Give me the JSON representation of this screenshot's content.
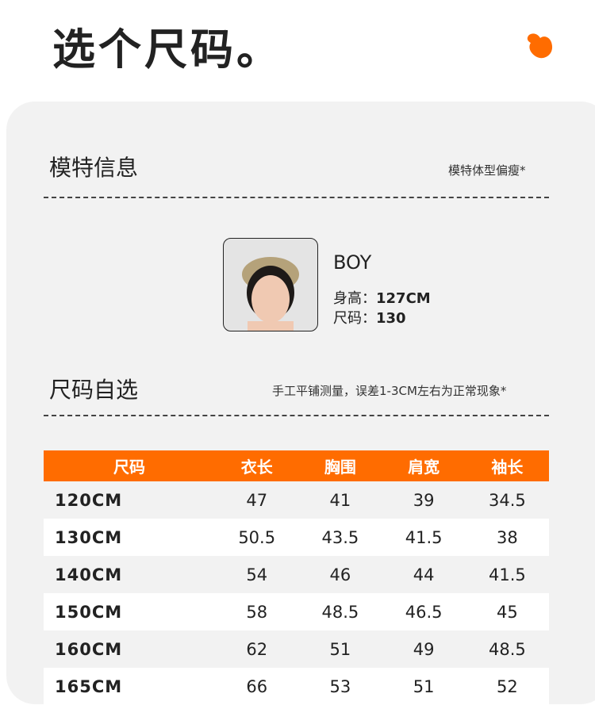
{
  "title": "选个尺码。",
  "accent": "#ff6c00",
  "model": {
    "heading": "模特信息",
    "note": "模特体型偏瘦*",
    "name": "BOY",
    "height_label": "身高：",
    "height": "127CM",
    "size_label": "尺码：",
    "size": "130"
  },
  "size": {
    "heading": "尺码自选",
    "note": "手工平铺测量，误差1-3CM左右为正常现象*"
  },
  "table": {
    "headers": [
      "尺码",
      "衣长",
      "胸围",
      "肩宽",
      "袖长"
    ],
    "rows": [
      [
        "120CM",
        "47",
        "41",
        "39",
        "34.5"
      ],
      [
        "130CM",
        "50.5",
        "43.5",
        "41.5",
        "38"
      ],
      [
        "140CM",
        "54",
        "46",
        "44",
        "41.5"
      ],
      [
        "150CM",
        "58",
        "48.5",
        "46.5",
        "45"
      ],
      [
        "160CM",
        "62",
        "51",
        "49",
        "48.5"
      ],
      [
        "165CM",
        "66",
        "53",
        "51",
        "52"
      ]
    ]
  }
}
